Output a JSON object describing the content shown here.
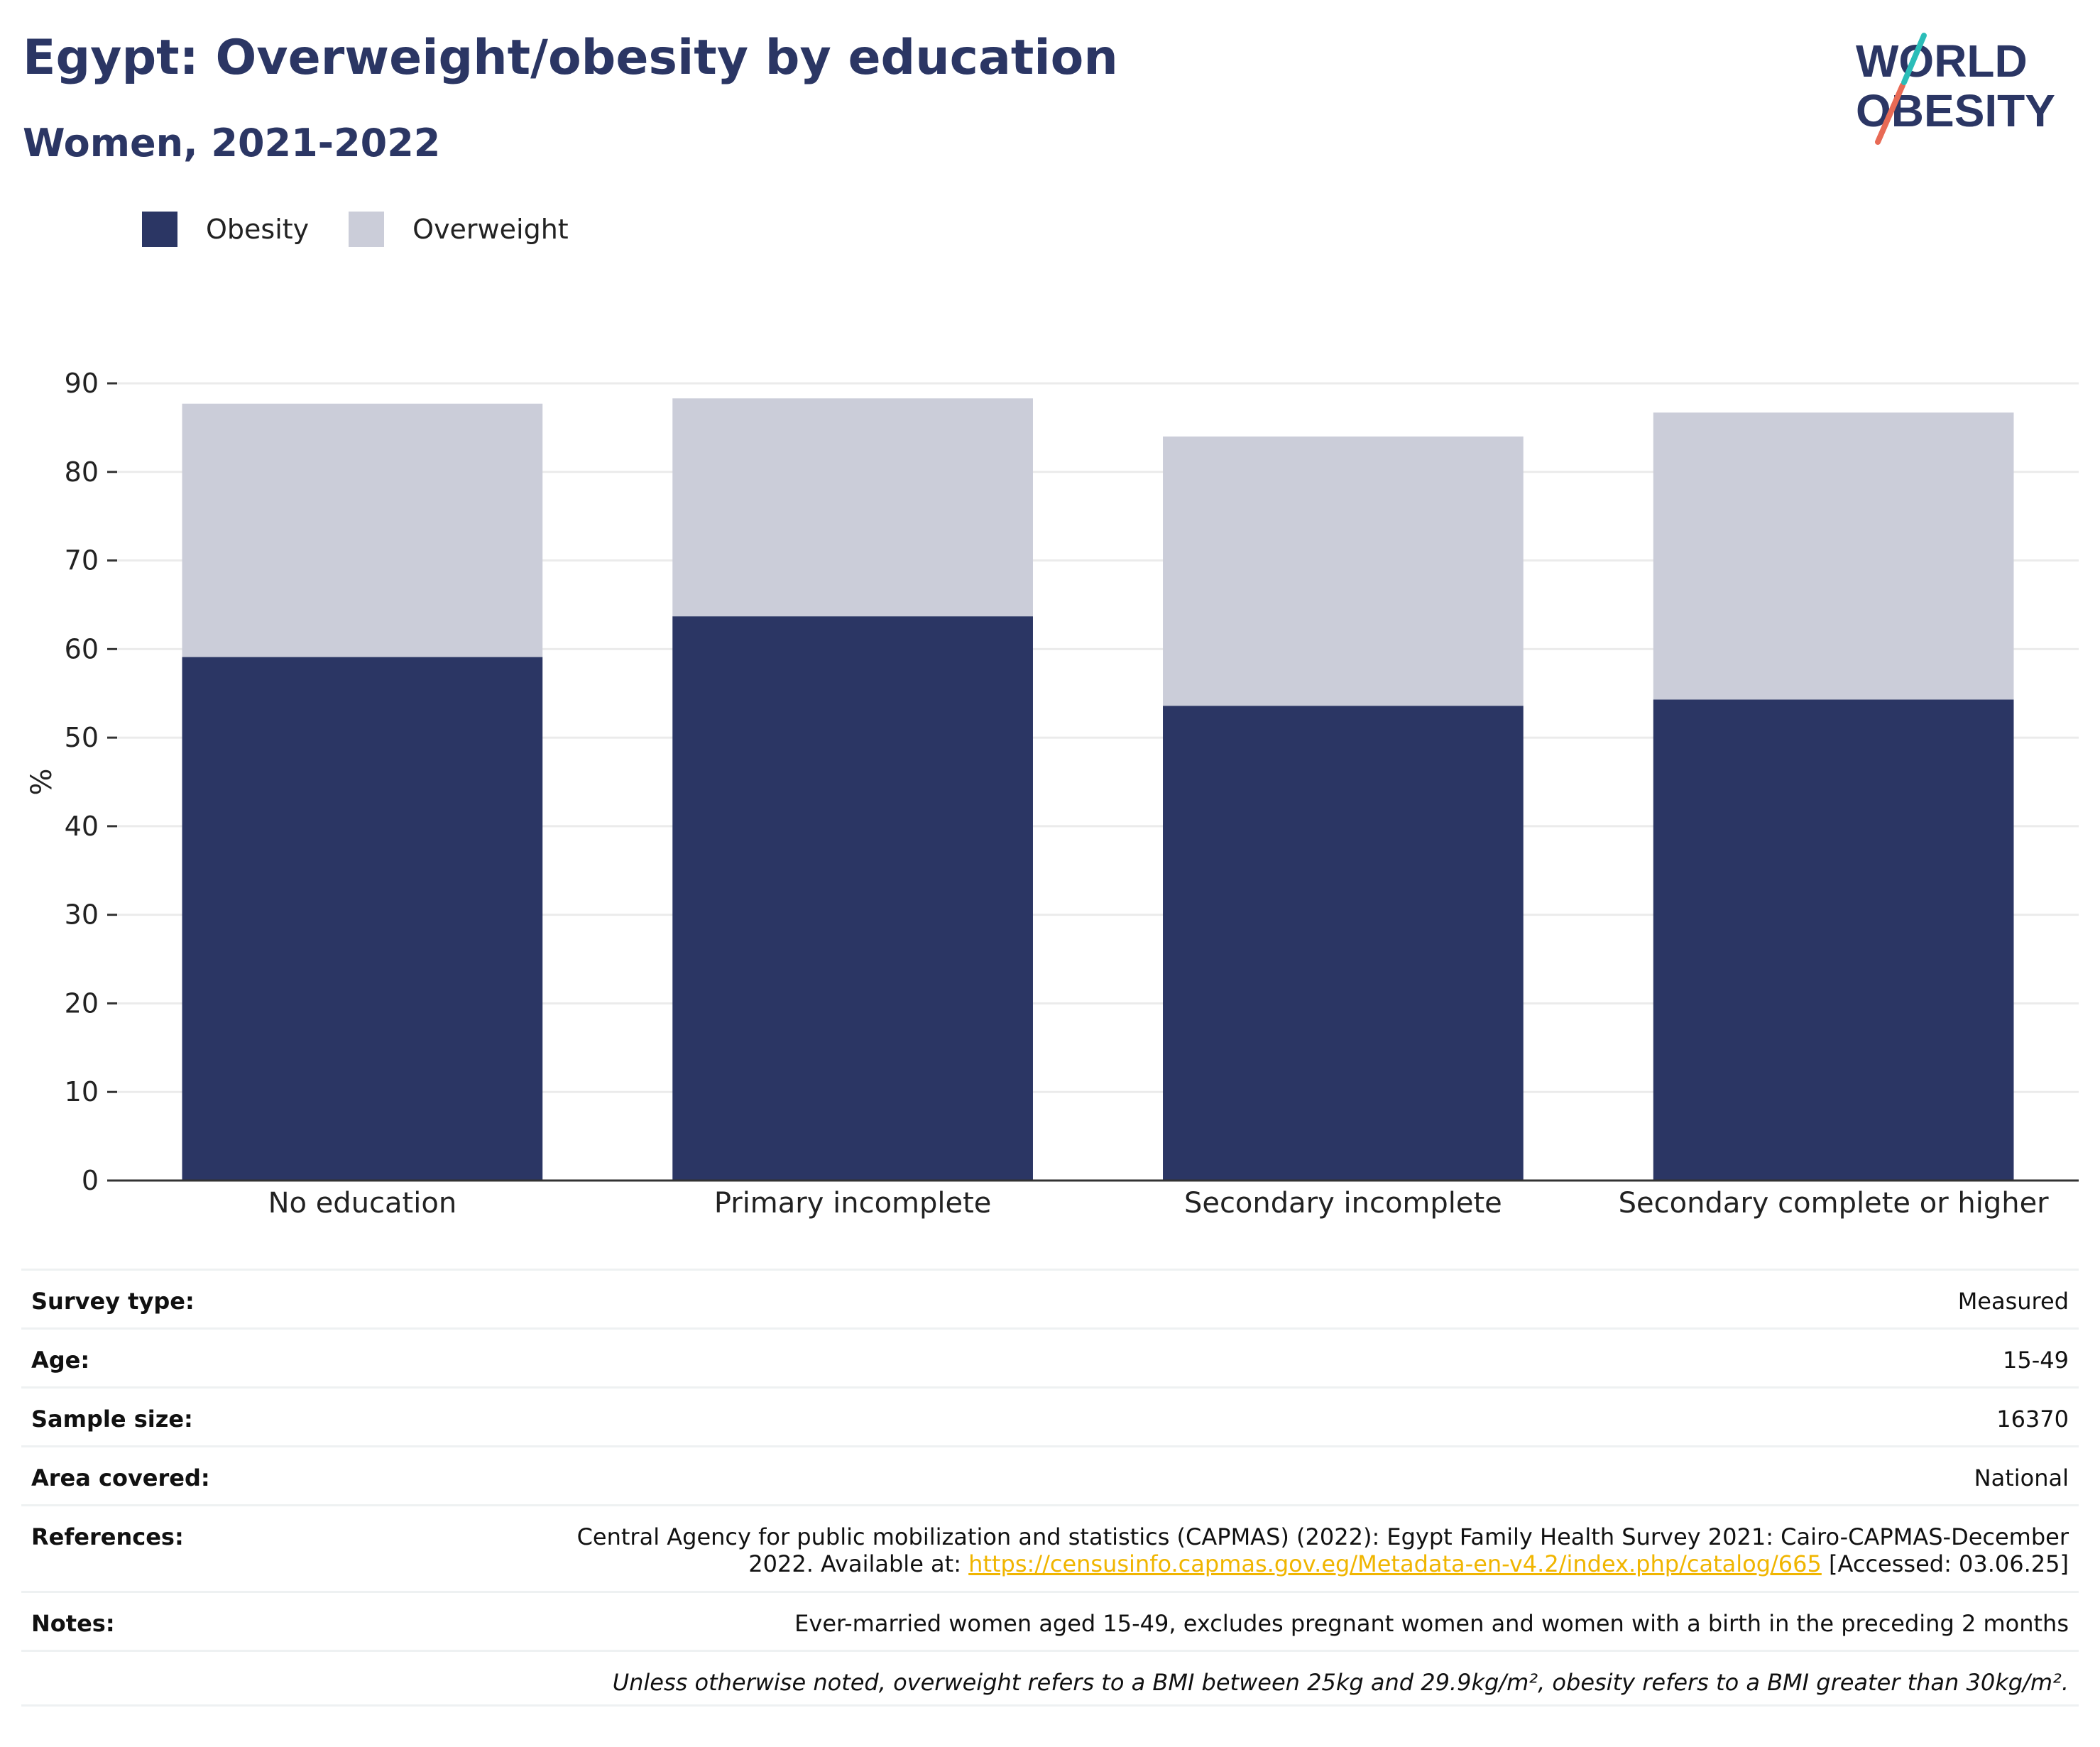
{
  "header": {
    "title": "Egypt: Overweight/obesity by education",
    "subtitle": "Women, 2021-2022"
  },
  "logo": {
    "line1": "WORLD",
    "line2": "OBESITY",
    "colors": {
      "text": "#2b3664",
      "slash_red": "#e86a55",
      "slash_teal": "#2bbdb8"
    }
  },
  "legend": {
    "items": [
      {
        "label": "Obesity",
        "color": "#2b3664"
      },
      {
        "label": "Overweight",
        "color": "#cbcdd9"
      }
    ]
  },
  "chart_data": {
    "type": "bar",
    "stacked": true,
    "categories": [
      "No education",
      "Primary incomplete",
      "Secondary incomplete",
      "Secondary complete or higher"
    ],
    "series": [
      {
        "name": "Obesity",
        "color": "#2b3664",
        "values": [
          59.1,
          63.7,
          53.6,
          54.3
        ]
      },
      {
        "name": "Overweight",
        "color": "#cbcdd9",
        "values": [
          28.6,
          24.6,
          30.4,
          32.4
        ]
      }
    ],
    "xlabel": "",
    "ylabel": "%",
    "ylim": [
      0,
      90
    ],
    "yticks": [
      0,
      10,
      20,
      30,
      40,
      50,
      60,
      70,
      80,
      90
    ],
    "grid": true,
    "legend_position": "top-left"
  },
  "info": {
    "survey_type": {
      "label": "Survey type:",
      "value": "Measured"
    },
    "age": {
      "label": "Age:",
      "value": "15-49"
    },
    "sample_size": {
      "label": "Sample size:",
      "value": "16370"
    },
    "area": {
      "label": "Area covered:",
      "value": "National"
    },
    "references": {
      "label": "References:",
      "line1": "Central Agency for public mobilization and statistics (CAPMAS) (2022): Egypt Family Health Survey 2021: Cairo-CAPMAS-December",
      "line2_prefix": "2022. Available at: ",
      "link": "https://censusinfo.capmas.gov.eg/Metadata-en-v4.2/index.php/catalog/665",
      "line2_suffix": " [Accessed: 03.06.25]"
    },
    "notes": {
      "label": "Notes:",
      "value": "Ever-married women aged 15-49, excludes pregnant women and women with a birth in the preceding 2 months"
    },
    "footnote": "Unless otherwise noted, overweight refers to a BMI between 25kg and 29.9kg/m², obesity refers to a BMI greater than 30kg/m²."
  }
}
